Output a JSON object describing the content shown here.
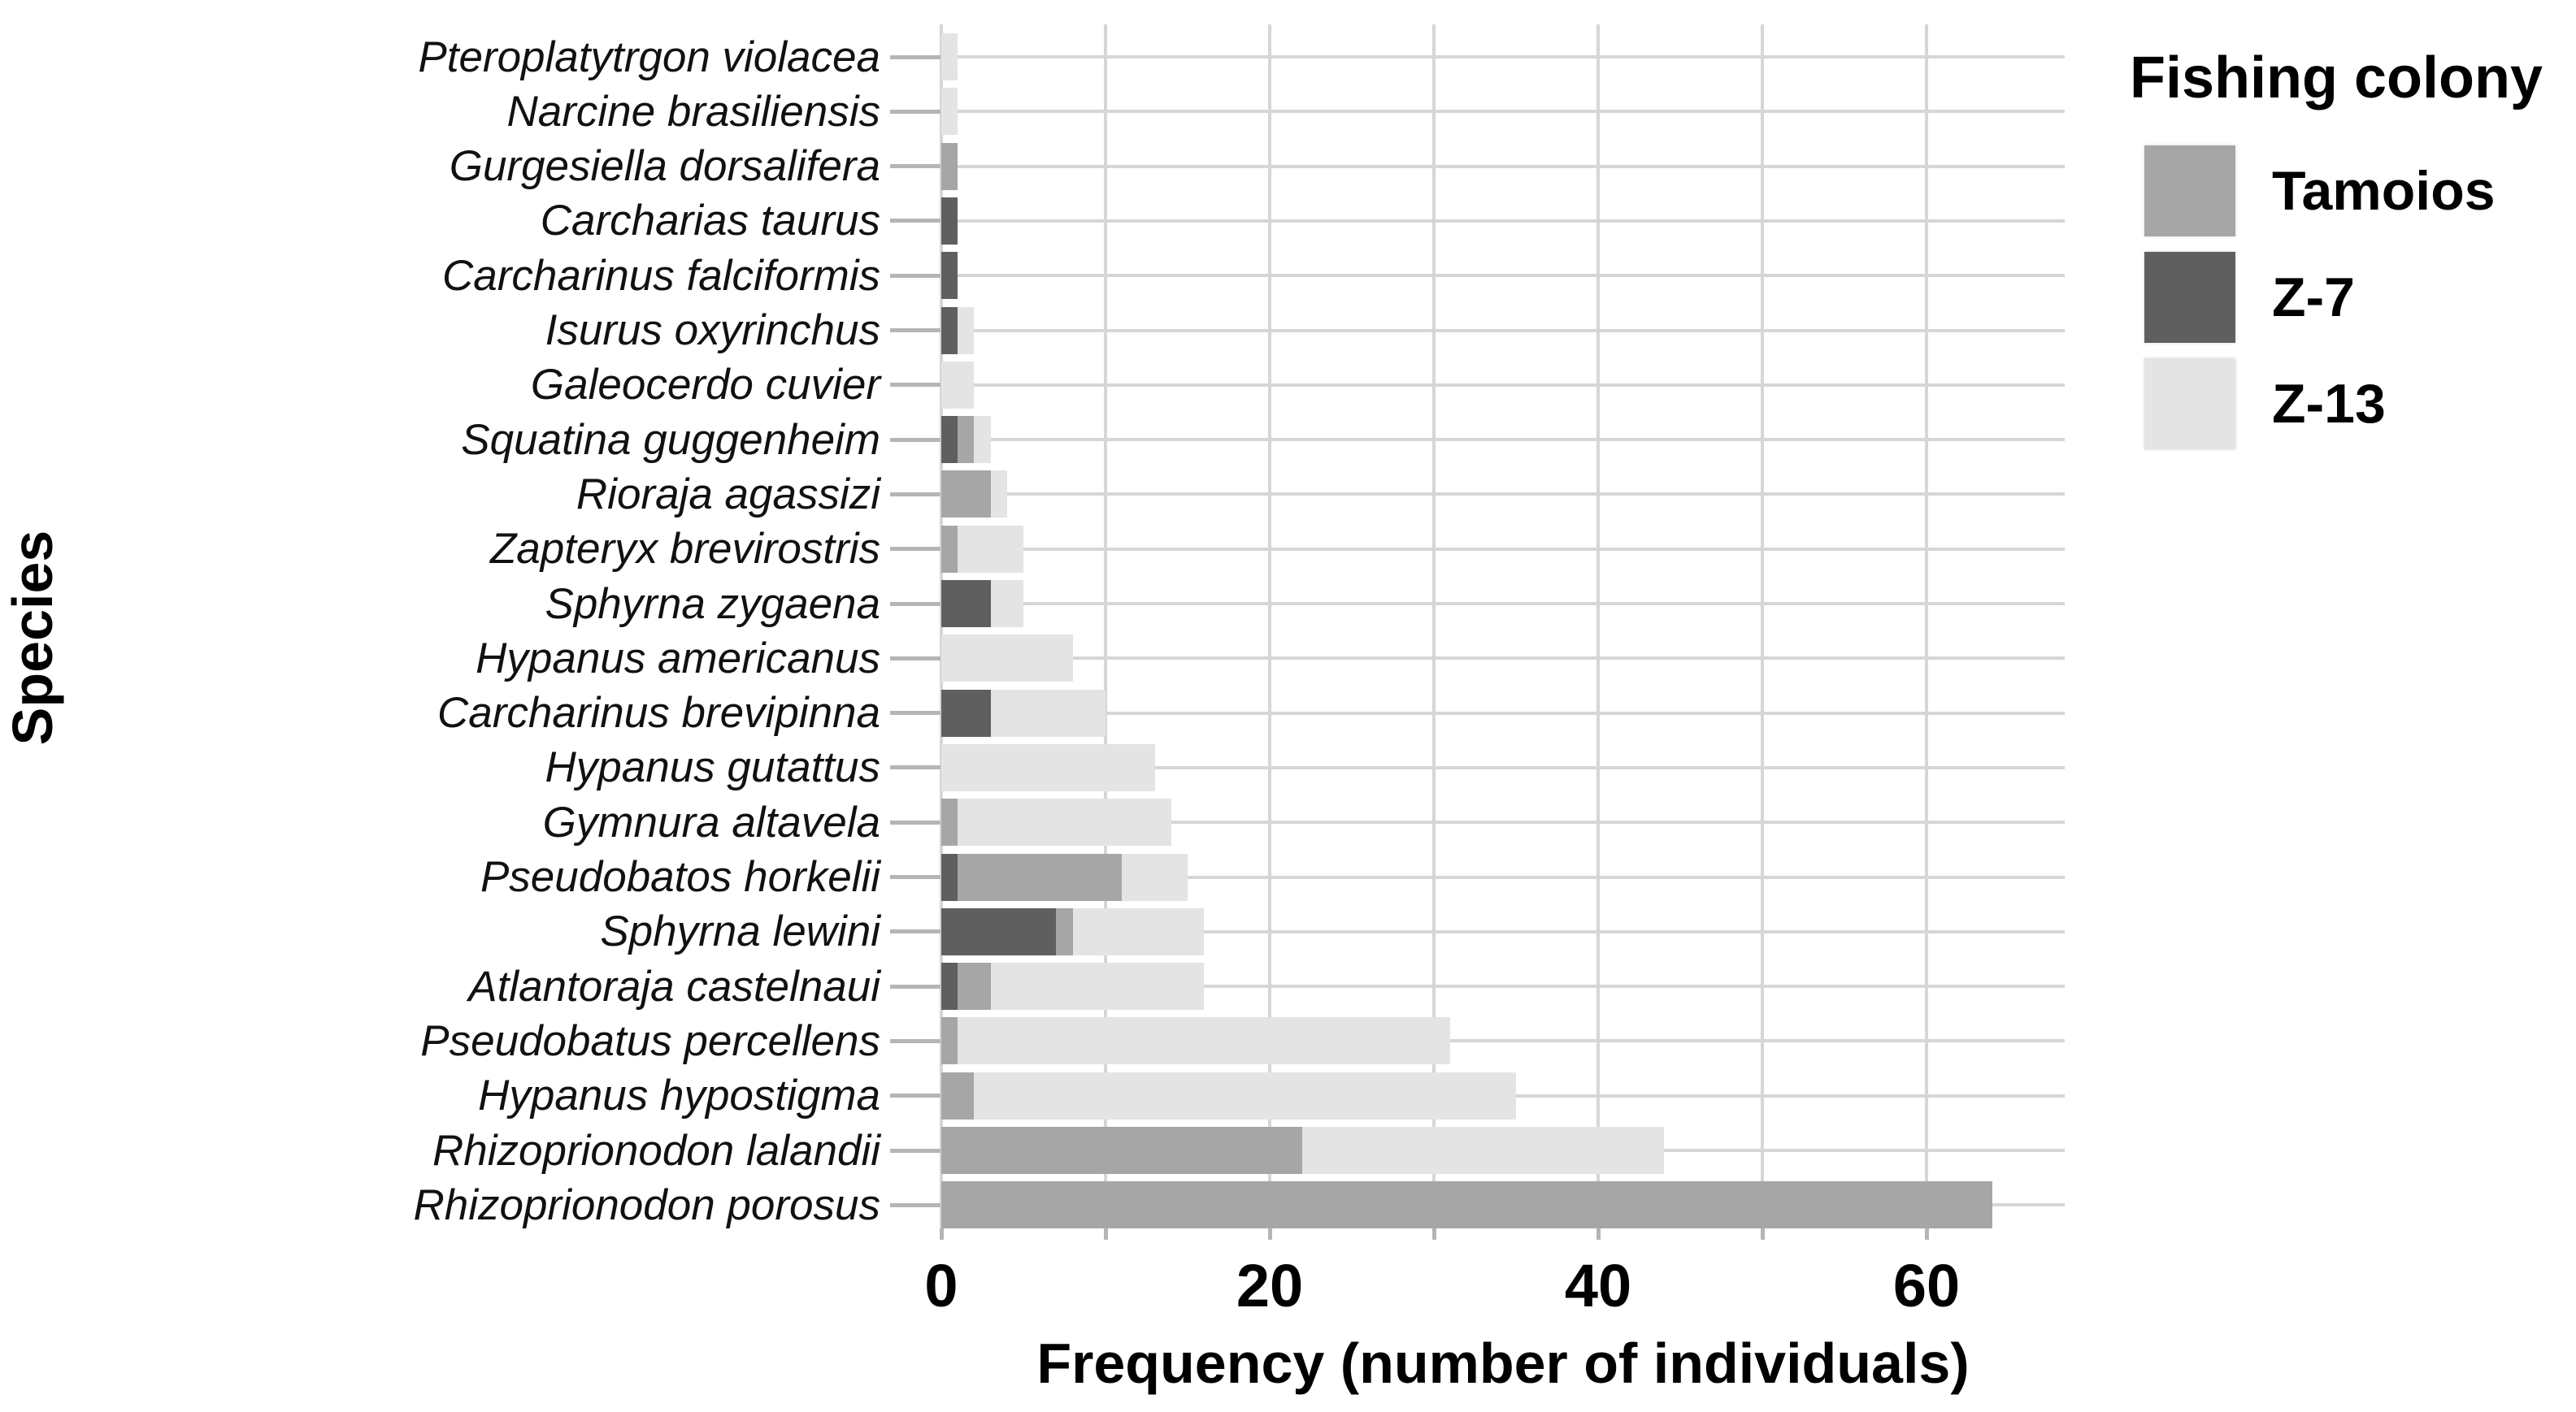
{
  "figure": {
    "y_axis_title": "Species",
    "x_axis_title": "Frequency (number of individuals)"
  },
  "legend": {
    "title": "Fishing colony",
    "entries": [
      {
        "label": "Tamoios",
        "color": "#a6a6a6"
      },
      {
        "label": "Z-7",
        "color": "#5f5f5f"
      },
      {
        "label": "Z-13",
        "color": "#e4e4e4"
      }
    ]
  },
  "chart_data": {
    "type": "bar",
    "orientation": "horizontal",
    "stacked": true,
    "title": "",
    "xlabel": "Frequency (number of individuals)",
    "ylabel": "Species",
    "legend_title": "Fishing colony",
    "legend_position": "top-right",
    "grid": true,
    "xlim": [
      0,
      68
    ],
    "x_gridlines": [
      0,
      10,
      20,
      30,
      40,
      50,
      60
    ],
    "x_ticks": [
      0,
      10,
      20,
      30,
      40,
      50,
      60
    ],
    "x_tick_labels": [
      "0",
      "",
      "20",
      "",
      "40",
      "",
      "60"
    ],
    "categories": [
      "Pteroplatytrgon violacea",
      "Narcine brasiliensis",
      "Gurgesiella dorsalifera",
      "Carcharias taurus",
      "Carcharinus falciformis",
      "Isurus oxyrinchus",
      "Galeocerdo cuvier",
      "Squatina guggenheim",
      "Rioraja agassizi",
      "Zapteryx brevirostris",
      "Sphyrna zygaena",
      "Hypanus americanus",
      "Carcharinus brevipinna",
      "Hypanus gutattus",
      "Gymnura altavela",
      "Pseudobatos horkelii",
      "Sphyrna lewini",
      "Atlantoraja castelnaui",
      "Pseudobatus percellens",
      "Hypanus hypostigma",
      "Rhizoprionodon lalandii",
      "Rhizoprionodon porosus"
    ],
    "series": [
      {
        "name": "Z-7",
        "color": "#5f5f5f",
        "values": [
          0,
          0,
          0,
          1,
          1,
          1,
          0,
          1,
          0,
          0,
          3,
          0,
          3,
          0,
          0,
          1,
          7,
          1,
          0,
          0,
          0,
          0
        ]
      },
      {
        "name": "Tamoios",
        "color": "#a6a6a6",
        "values": [
          0,
          0,
          1,
          0,
          0,
          0,
          0,
          1,
          3,
          1,
          0,
          0,
          0,
          0,
          1,
          10,
          1,
          2,
          1,
          2,
          22,
          64
        ]
      },
      {
        "name": "Z-13",
        "color": "#e4e4e4",
        "values": [
          1,
          1,
          0,
          0,
          0,
          1,
          2,
          1,
          1,
          4,
          2,
          8,
          7,
          13,
          13,
          4,
          8,
          13,
          30,
          33,
          22,
          0
        ]
      }
    ],
    "totals": [
      1,
      1,
      1,
      1,
      1,
      2,
      2,
      3,
      4,
      5,
      5,
      8,
      10,
      13,
      14,
      15,
      16,
      16,
      31,
      35,
      44,
      64
    ],
    "stack_order": "segments drawn from axis outward in order Z-7, Tamoios, Z-13"
  }
}
